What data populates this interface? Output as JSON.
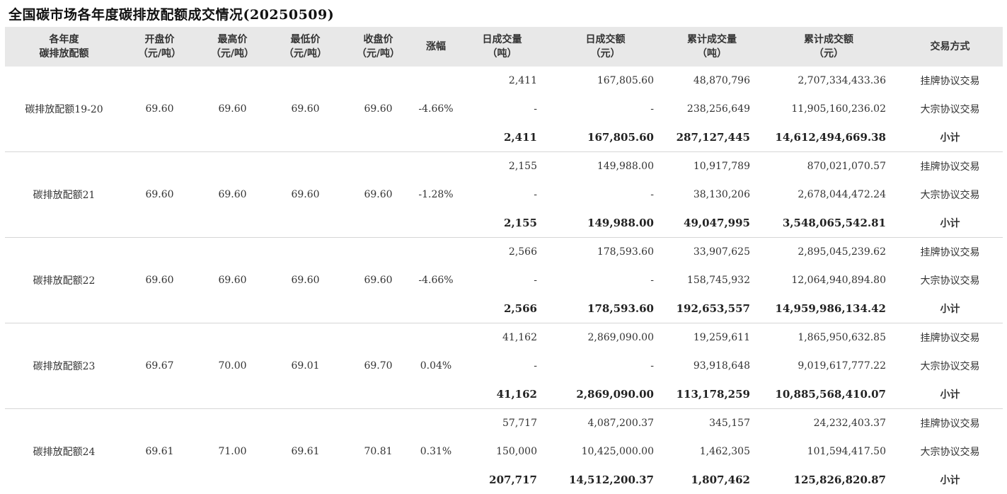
{
  "title": "全国碳市场各年度碳排放配额成交情况(20250509)",
  "headers": [
    [
      "各年度",
      "碳排放配额"
    ],
    [
      "开盘价",
      "（元/吨）"
    ],
    [
      "最高价",
      "（元/吨）"
    ],
    [
      "最低价",
      "（元/吨）"
    ],
    [
      "收盘价",
      "（元/吨）"
    ],
    [
      "涨幅"
    ],
    [
      "日成交量",
      "（吨）"
    ],
    [
      "日成交额",
      "（元）"
    ],
    [
      "累计成交量",
      "（吨）"
    ],
    [
      "累计成交额",
      "（元）"
    ],
    [
      "交易方式"
    ]
  ],
  "groups": [
    {
      "name": "碳排放配额19-20",
      "open": "69.60",
      "high": "69.60",
      "low": "69.60",
      "close": "69.60",
      "change": "-4.66%",
      "rows": [
        {
          "daily_volume": "2,411",
          "daily_amount": "167,805.60",
          "cum_volume": "48,870,796",
          "cum_amount": "2,707,334,433.36",
          "type": "挂牌协议交易"
        },
        {
          "daily_volume": "-",
          "daily_amount": "-",
          "cum_volume": "238,256,649",
          "cum_amount": "11,905,160,236.02",
          "type": "大宗协议交易"
        },
        {
          "daily_volume": "2,411",
          "daily_amount": "167,805.60",
          "cum_volume": "287,127,445",
          "cum_amount": "14,612,494,669.38",
          "type": "小计"
        }
      ]
    },
    {
      "name": "碳排放配额21",
      "open": "69.60",
      "high": "69.60",
      "low": "69.60",
      "close": "69.60",
      "change": "-1.28%",
      "rows": [
        {
          "daily_volume": "2,155",
          "daily_amount": "149,988.00",
          "cum_volume": "10,917,789",
          "cum_amount": "870,021,070.57",
          "type": "挂牌协议交易"
        },
        {
          "daily_volume": "-",
          "daily_amount": "-",
          "cum_volume": "38,130,206",
          "cum_amount": "2,678,044,472.24",
          "type": "大宗协议交易"
        },
        {
          "daily_volume": "2,155",
          "daily_amount": "149,988.00",
          "cum_volume": "49,047,995",
          "cum_amount": "3,548,065,542.81",
          "type": "小计"
        }
      ]
    },
    {
      "name": "碳排放配额22",
      "open": "69.60",
      "high": "69.60",
      "low": "69.60",
      "close": "69.60",
      "change": "-4.66%",
      "rows": [
        {
          "daily_volume": "2,566",
          "daily_amount": "178,593.60",
          "cum_volume": "33,907,625",
          "cum_amount": "2,895,045,239.62",
          "type": "挂牌协议交易"
        },
        {
          "daily_volume": "-",
          "daily_amount": "-",
          "cum_volume": "158,745,932",
          "cum_amount": "12,064,940,894.80",
          "type": "大宗协议交易"
        },
        {
          "daily_volume": "2,566",
          "daily_amount": "178,593.60",
          "cum_volume": "192,653,557",
          "cum_amount": "14,959,986,134.42",
          "type": "小计"
        }
      ]
    },
    {
      "name": "碳排放配额23",
      "open": "69.67",
      "high": "70.00",
      "low": "69.01",
      "close": "69.70",
      "change": "0.04%",
      "rows": [
        {
          "daily_volume": "41,162",
          "daily_amount": "2,869,090.00",
          "cum_volume": "19,259,611",
          "cum_amount": "1,865,950,632.85",
          "type": "挂牌协议交易"
        },
        {
          "daily_volume": "-",
          "daily_amount": "-",
          "cum_volume": "93,918,648",
          "cum_amount": "9,019,617,777.22",
          "type": "大宗协议交易"
        },
        {
          "daily_volume": "41,162",
          "daily_amount": "2,869,090.00",
          "cum_volume": "113,178,259",
          "cum_amount": "10,885,568,410.07",
          "type": "小计"
        }
      ]
    },
    {
      "name": "碳排放配额24",
      "open": "69.61",
      "high": "71.00",
      "low": "69.61",
      "close": "70.81",
      "change": "0.31%",
      "rows": [
        {
          "daily_volume": "57,717",
          "daily_amount": "4,087,200.37",
          "cum_volume": "345,157",
          "cum_amount": "24,232,403.37",
          "type": "挂牌协议交易"
        },
        {
          "daily_volume": "150,000",
          "daily_amount": "10,425,000.00",
          "cum_volume": "1,462,305",
          "cum_amount": "101,594,417.50",
          "type": "大宗协议交易"
        },
        {
          "daily_volume": "207,717",
          "daily_amount": "14,512,200.37",
          "cum_volume": "1,807,462",
          "cum_amount": "125,826,820.87",
          "type": "小计"
        }
      ]
    }
  ]
}
